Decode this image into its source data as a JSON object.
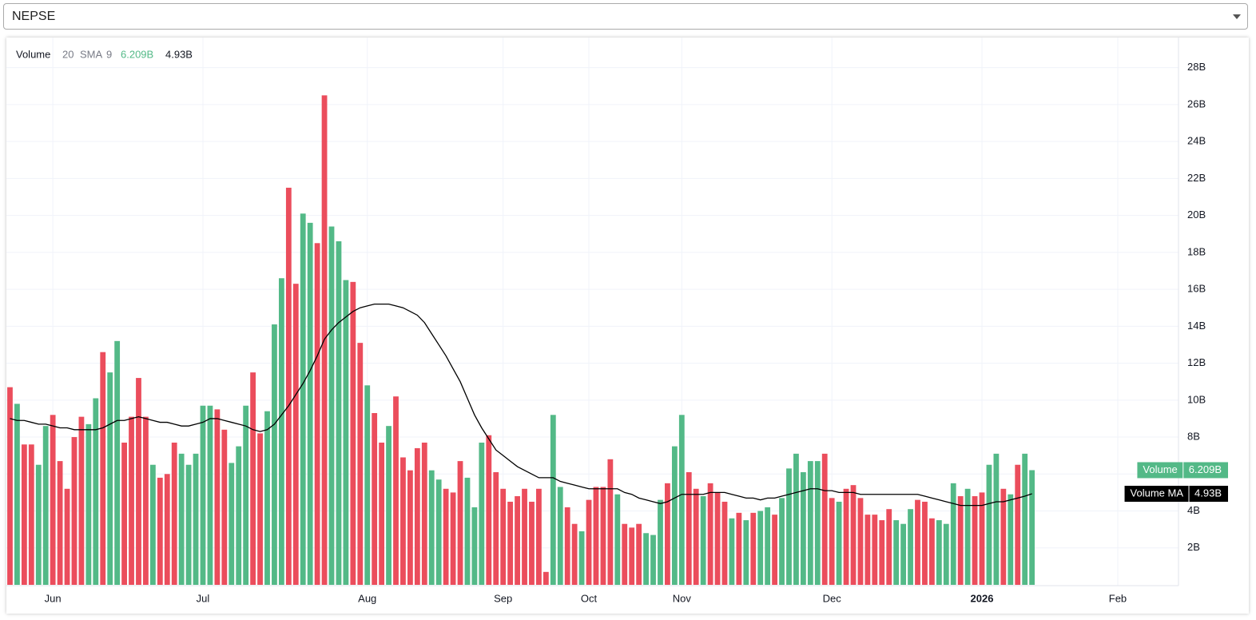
{
  "selector": {
    "value": "NEPSE"
  },
  "chart_data": {
    "type": "bar",
    "indicator": {
      "name": "Volume",
      "length": 20,
      "ma_type": "SMA",
      "ma_length": 9
    },
    "categories": [
      null,
      null,
      null,
      null,
      null,
      null,
      "Jun",
      null,
      null,
      null,
      null,
      null,
      null,
      null,
      null,
      null,
      null,
      null,
      null,
      null,
      null,
      null,
      null,
      null,
      null,
      null,
      null,
      "Jul",
      null,
      null,
      null,
      null,
      null,
      null,
      null,
      null,
      null,
      null,
      null,
      null,
      null,
      null,
      null,
      null,
      null,
      null,
      null,
      null,
      null,
      null,
      "Aug",
      null,
      null,
      null,
      null,
      null,
      null,
      null,
      null,
      null,
      null,
      null,
      null,
      null,
      null,
      null,
      null,
      null,
      null,
      "Sep",
      null,
      null,
      null,
      null,
      null,
      null,
      null,
      null,
      null,
      null,
      null,
      "Oct",
      null,
      null,
      null,
      null,
      null,
      null,
      null,
      null,
      null,
      null,
      null,
      null,
      "Nov",
      null,
      null,
      null,
      null,
      null,
      null,
      null,
      null,
      null,
      null,
      null,
      null,
      null,
      null,
      null,
      null,
      null,
      null,
      null,
      null,
      "Dec",
      null,
      null,
      null,
      null,
      null,
      null,
      null,
      null,
      null,
      null,
      null,
      null,
      null,
      null,
      null,
      null,
      null,
      null,
      null,
      null,
      "2026",
      null,
      null,
      null,
      null,
      null,
      null,
      null,
      null,
      null,
      null,
      null,
      null,
      null,
      null,
      null,
      null,
      null,
      null,
      "Feb",
      null,
      null,
      null,
      null,
      null,
      null,
      null,
      null
    ],
    "series": [
      {
        "name": "Volume",
        "type": "bar",
        "label_color": "#53b987",
        "last_label": "6.209B",
        "values": [
          10.7,
          9.8,
          7.6,
          7.6,
          6.5,
          8.6,
          9.2,
          6.7,
          5.2,
          8.0,
          9.1,
          8.7,
          10.1,
          12.6,
          11.5,
          13.2,
          7.7,
          9.1,
          11.2,
          9.1,
          6.5,
          5.8,
          6.0,
          7.7,
          7.1,
          6.5,
          7.1,
          9.7,
          9.7,
          9.5,
          8.4,
          6.6,
          7.5,
          9.7,
          11.5,
          8.2,
          9.4,
          14.1,
          16.6,
          21.5,
          16.3,
          20.1,
          19.6,
          18.5,
          26.5,
          19.4,
          18.6,
          16.5,
          16.4,
          13.1,
          10.8,
          9.3,
          7.7,
          8.6,
          10.2,
          6.9,
          6.2,
          7.4,
          7.7,
          6.2,
          5.7,
          5.2,
          5.0,
          6.7,
          5.8,
          4.2,
          7.7,
          8.1,
          6.1,
          5.2,
          4.5,
          4.8,
          5.2,
          4.5,
          5.2,
          0.7,
          9.2,
          5.3,
          4.2,
          3.3,
          2.9,
          4.6,
          5.3,
          5.3,
          6.8,
          4.9,
          3.3,
          3.1,
          3.3,
          2.8,
          2.7,
          4.6,
          5.5,
          7.5,
          9.2,
          6.1,
          5.2,
          4.8,
          5.5,
          5.0,
          4.5,
          3.6,
          3.9,
          3.5,
          3.9,
          4.0,
          4.2,
          3.8,
          4.7,
          6.3,
          7.1,
          6.1,
          6.7,
          6.7,
          7.1,
          4.7,
          4.5,
          5.2,
          5.4,
          4.7,
          3.8,
          3.8,
          3.5,
          4.1,
          3.5,
          3.3,
          4.1,
          4.6,
          4.5,
          3.6,
          3.5,
          3.3,
          5.5,
          4.8,
          5.2,
          4.8,
          5.0,
          6.5,
          7.1,
          5.2,
          4.9,
          6.5,
          7.1,
          6.209,
          null,
          null,
          null,
          null,
          null,
          null,
          null,
          null,
          null,
          null,
          null,
          null,
          null,
          null,
          null,
          null,
          null,
          null,
          null,
          null
        ],
        "colors": [
          "#eb4d5c",
          "#53b987",
          "#eb4d5c",
          "#eb4d5c",
          "#53b987",
          "#53b987",
          "#eb4d5c",
          "#eb4d5c",
          "#eb4d5c",
          "#eb4d5c",
          "#eb4d5c",
          "#53b987",
          "#53b987",
          "#eb4d5c",
          "#53b987",
          "#53b987",
          "#eb4d5c",
          "#eb4d5c",
          "#eb4d5c",
          "#eb4d5c",
          "#53b987",
          "#eb4d5c",
          "#eb4d5c",
          "#eb4d5c",
          "#53b987",
          "#53b987",
          "#53b987",
          "#53b987",
          "#53b987",
          "#eb4d5c",
          "#eb4d5c",
          "#53b987",
          "#53b987",
          "#53b987",
          "#eb4d5c",
          "#eb4d5c",
          "#53b987",
          "#53b987",
          "#53b987",
          "#eb4d5c",
          "#eb4d5c",
          "#53b987",
          "#53b987",
          "#eb4d5c",
          "#eb4d5c",
          "#53b987",
          "#53b987",
          "#53b987",
          "#eb4d5c",
          "#eb4d5c",
          "#53b987",
          "#eb4d5c",
          "#eb4d5c",
          "#53b987",
          "#eb4d5c",
          "#eb4d5c",
          "#eb4d5c",
          "#eb4d5c",
          "#eb4d5c",
          "#53b987",
          "#53b987",
          "#eb4d5c",
          "#eb4d5c",
          "#eb4d5c",
          "#53b987",
          "#53b987",
          "#53b987",
          "#eb4d5c",
          "#eb4d5c",
          "#eb4d5c",
          "#eb4d5c",
          "#eb4d5c",
          "#eb4d5c",
          "#eb4d5c",
          "#eb4d5c",
          "#eb4d5c",
          "#53b987",
          "#53b987",
          "#eb4d5c",
          "#eb4d5c",
          "#53b987",
          "#eb4d5c",
          "#eb4d5c",
          "#eb4d5c",
          "#eb4d5c",
          "#53b987",
          "#eb4d5c",
          "#eb4d5c",
          "#eb4d5c",
          "#53b987",
          "#53b987",
          "#53b987",
          "#eb4d5c",
          "#53b987",
          "#53b987",
          "#eb4d5c",
          "#eb4d5c",
          "#53b987",
          "#eb4d5c",
          "#eb4d5c",
          "#eb4d5c",
          "#53b987",
          "#eb4d5c",
          "#53b987",
          "#eb4d5c",
          "#53b987",
          "#53b987",
          "#eb4d5c",
          "#53b987",
          "#53b987",
          "#53b987",
          "#53b987",
          "#53b987",
          "#53b987",
          "#eb4d5c",
          "#eb4d5c",
          "#53b987",
          "#eb4d5c",
          "#eb4d5c",
          "#eb4d5c",
          "#eb4d5c",
          "#eb4d5c",
          "#eb4d5c",
          "#eb4d5c",
          "#53b987",
          "#53b987",
          "#53b987",
          "#eb4d5c",
          "#eb4d5c",
          "#eb4d5c",
          "#53b987",
          "#53b987",
          "#53b987",
          "#eb4d5c",
          "#53b987",
          "#eb4d5c",
          "#eb4d5c",
          "#53b987",
          "#53b987",
          "#eb4d5c",
          "#53b987",
          "#eb4d5c",
          "#53b987",
          "#53b987",
          null,
          null,
          null,
          null,
          null,
          null,
          null,
          null,
          null,
          null,
          null,
          null,
          null,
          null,
          null,
          null,
          null,
          null,
          null,
          null
        ]
      },
      {
        "name": "Volume MA",
        "type": "line",
        "color": "#000000",
        "label_color": "#000000",
        "last_label": "4.93B",
        "values": [
          9.0,
          8.9,
          8.9,
          8.8,
          8.7,
          8.7,
          8.6,
          8.5,
          8.5,
          8.4,
          8.4,
          8.4,
          8.4,
          8.5,
          8.7,
          8.9,
          8.9,
          9.0,
          9.1,
          9.0,
          8.9,
          8.8,
          8.8,
          8.7,
          8.6,
          8.6,
          8.7,
          8.8,
          9.0,
          9.0,
          8.9,
          8.8,
          8.7,
          8.6,
          8.4,
          8.3,
          8.4,
          8.7,
          9.2,
          9.7,
          10.3,
          10.9,
          11.6,
          12.4,
          13.3,
          13.8,
          14.2,
          14.5,
          14.8,
          15.0,
          15.1,
          15.2,
          15.2,
          15.2,
          15.1,
          15.0,
          14.8,
          14.6,
          14.2,
          13.6,
          13.0,
          12.4,
          11.7,
          11.0,
          10.1,
          9.2,
          8.5,
          7.9,
          7.3,
          7.0,
          6.7,
          6.4,
          6.2,
          6.0,
          5.8,
          5.8,
          5.8,
          5.6,
          5.5,
          5.4,
          5.3,
          5.2,
          5.2,
          5.2,
          5.2,
          5.2,
          5.0,
          4.9,
          4.7,
          4.6,
          4.5,
          4.4,
          4.5,
          4.7,
          4.9,
          4.9,
          4.9,
          4.9,
          5.0,
          5.0,
          5.0,
          4.9,
          4.8,
          4.7,
          4.7,
          4.6,
          4.7,
          4.7,
          4.8,
          4.9,
          5.0,
          5.1,
          5.2,
          5.2,
          5.1,
          5.1,
          5.0,
          5.0,
          5.0,
          4.9,
          4.9,
          4.9,
          4.9,
          4.9,
          4.9,
          4.9,
          4.9,
          4.9,
          4.8,
          4.7,
          4.6,
          4.5,
          4.4,
          4.3,
          4.3,
          4.3,
          4.3,
          4.4,
          4.5,
          4.5,
          4.6,
          4.7,
          4.8,
          4.93,
          null,
          null,
          null,
          null,
          null,
          null,
          null,
          null,
          null,
          null,
          null,
          null,
          null,
          null,
          null,
          null,
          null,
          null,
          null,
          null
        ]
      }
    ],
    "ylim": [
      0,
      29.5
    ],
    "yticks": [
      {
        "value": 2,
        "label": "2B"
      },
      {
        "value": 4,
        "label": "4B"
      },
      {
        "value": 6,
        "label": "6B"
      },
      {
        "value": 8,
        "label": "8B"
      },
      {
        "value": 10,
        "label": "10B"
      },
      {
        "value": 12,
        "label": "12B"
      },
      {
        "value": 14,
        "label": "14B"
      },
      {
        "value": 16,
        "label": "16B"
      },
      {
        "value": 18,
        "label": "18B"
      },
      {
        "value": 20,
        "label": "20B"
      },
      {
        "value": 22,
        "label": "22B"
      },
      {
        "value": 24,
        "label": "24B"
      },
      {
        "value": 26,
        "label": "26B"
      },
      {
        "value": 28,
        "label": "28B"
      }
    ],
    "grid": true
  }
}
